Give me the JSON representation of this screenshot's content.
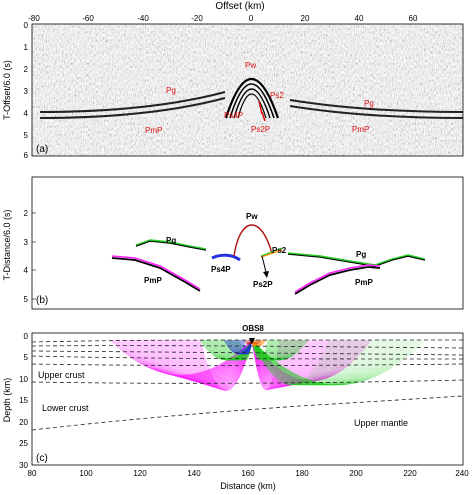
{
  "panel_a": {
    "top_axis_label": "Offset (km)",
    "x_ticks": [
      "-80",
      "-60",
      "-40",
      "-20",
      "0",
      "20",
      "40",
      "60"
    ],
    "y_label": "T-Offset/6.0 (s)",
    "y_ticks": [
      "0",
      "1",
      "2",
      "3",
      "4",
      "5",
      "6"
    ],
    "tag": "(a)",
    "phase_labels": {
      "pw": "Pw",
      "pg_left": "Pg",
      "pg_right": "Pg",
      "pmp_left": "PmP",
      "pmp_right": "PmP",
      "ps4p": "Ps4P",
      "ps2": "Ps2",
      "ps2p": "Ps2P"
    },
    "label_color": "#e01010"
  },
  "panel_b": {
    "y_label": "T-Distance/6.0 (s)",
    "y_ticks": [
      "2",
      "3",
      "4",
      "5"
    ],
    "tag": "(b)",
    "phase_labels": {
      "pw": "Pw",
      "pg_left": "Pg",
      "pg_right": "Pg",
      "pmp_left": "PmP",
      "pmp_right": "PmP",
      "ps4p": "Ps4P",
      "ps2": "Ps2",
      "ps2p": "Ps2P"
    }
  },
  "panel_c": {
    "station": "OBS8",
    "y_label": "Depth (km)",
    "y_ticks": [
      "0",
      "5",
      "10",
      "15",
      "20",
      "25",
      "30"
    ],
    "x_ticks": [
      "80",
      "100",
      "120",
      "140",
      "160",
      "180",
      "200",
      "220",
      "240"
    ],
    "x_label": "Distance (km)",
    "tag": "(c)",
    "layer_labels": {
      "upper_crust": "Upper crust",
      "lower_crust": "Lower crust",
      "upper_mantle": "Upper mantle"
    }
  },
  "colors": {
    "pg": "#22cc22",
    "pmp": "#ff22ff",
    "ps4p": "#2233dd",
    "pw": "#b01010",
    "ps2": "#ff8800"
  }
}
